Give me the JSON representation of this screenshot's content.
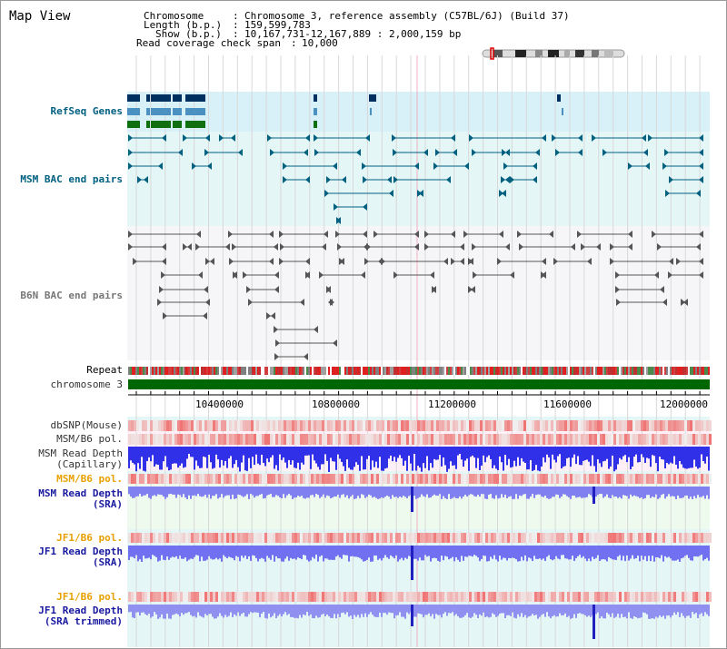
{
  "title": "Map View",
  "info": {
    "chromosome_label": "Chromosome",
    "chromosome_value": "Chromosome 3, reference assembly (C57BL/6J) (Build 37)",
    "length_label": "Length (b.p.)",
    "length_value": "159,599,783",
    "show_label": "Show (b.p.)",
    "show_value": "10,167,731-12,167,889 : 2,000,159 bp",
    "coverage_label": "Read coverage check span",
    "coverage_value": "10,000"
  },
  "tracks": {
    "refseq": "RefSeq Genes",
    "msm_bac": "MSM BAC end pairs",
    "b6n_bac": "B6N BAC end pairs",
    "repeat": "Repeat",
    "chromosome": "chromosome 3",
    "dbsnp": "dbSNP(Mouse)",
    "msm_b6_pol_1": "MSM/B6 pol.",
    "msm_depth_cap_1": "MSM Read Depth",
    "msm_depth_cap_2": "(Capillary)",
    "msm_b6_pol_2": "MSM/B6 pol.",
    "msm_depth_sra_1": "MSM Read Depth",
    "msm_depth_sra_2": "(SRA)",
    "jf1_b6_pol_1": "JF1/B6 pol.",
    "jf1_depth_sra_1": "JF1 Read Depth",
    "jf1_depth_sra_2": "(SRA)",
    "jf1_b6_pol_2": "JF1/B6 pol.",
    "jf1_depth_trim_1": "JF1 Read Depth",
    "jf1_depth_trim_2": "(SRA trimmed)"
  },
  "axis": {
    "ticks": [
      "10400000",
      "10800000",
      "11200000",
      "11600000",
      "12000000"
    ]
  },
  "colors": {
    "teal_band": "#d8f0f8",
    "gene_navy": "#003060",
    "gene_blue": "#4a90c0",
    "gene_green": "#107010",
    "msm_feature": "#006080",
    "b6n_feature": "#555555",
    "chromosome_bar": "#006600",
    "depth_blue": "#2020e0",
    "pol_red": "#e03030"
  }
}
